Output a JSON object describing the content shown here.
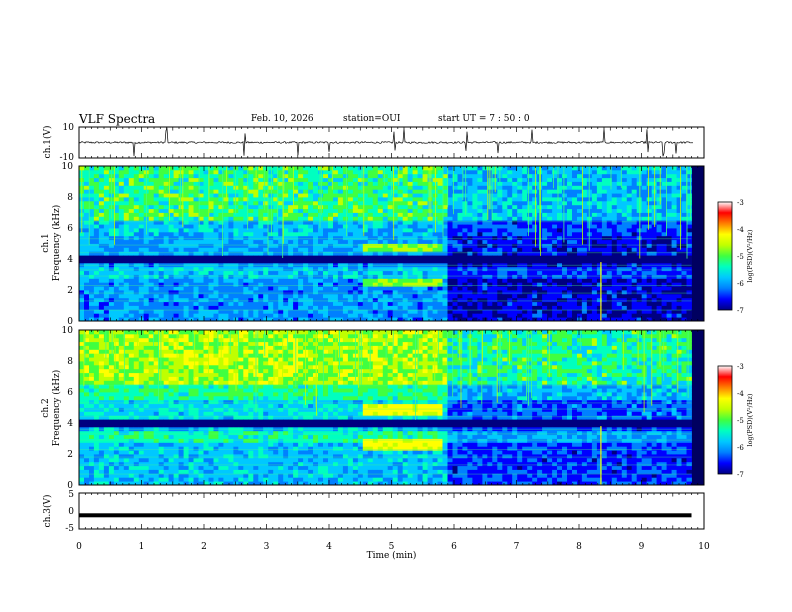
{
  "header": {
    "title": "VLF Spectra",
    "date": "Feb. 10, 2026",
    "station": "station=OUI",
    "start": "start UT =  7 : 50 : 0"
  },
  "colors": {
    "colormap": [
      "#000080",
      "#0000ff",
      "#0080ff",
      "#00c8ff",
      "#00ffc0",
      "#40ff40",
      "#c0ff00",
      "#ffff00",
      "#ff8000",
      "#ff0000",
      "#ffffff"
    ],
    "trace": "#000000"
  },
  "chart_data": [
    {
      "type": "line",
      "id": "ch1_waveform",
      "ylabel": "ch.1(V)",
      "ylim": [
        -10,
        10
      ],
      "ytick_labels": [
        "10",
        "-10"
      ],
      "baseline": 0,
      "noise_amplitude": 0.6,
      "spike_times_min": [
        0.88,
        1.4,
        2.65,
        3.5,
        4.0,
        5.05,
        5.2,
        6.2,
        6.7,
        7.25,
        8.4,
        9.1,
        9.35,
        9.55
      ],
      "xlim": [
        0,
        9.8
      ]
    },
    {
      "type": "heatmap",
      "id": "ch1_spectrogram",
      "ylabel": "ch.1\nFrequency (kHz)",
      "ylabel_lines": [
        "ch.1",
        "Frequency (kHz)"
      ],
      "ylim": [
        0,
        10
      ],
      "ytick_labels": [
        "10",
        "8",
        "6",
        "4",
        "2",
        "0"
      ],
      "xlim": [
        0,
        9.8
      ],
      "colorbar": {
        "label": "log(PSD)(V²/Hz)",
        "range": [
          -7,
          -3
        ],
        "tick_labels": [
          "-3",
          "-4",
          "-5",
          "-6",
          "-7"
        ]
      },
      "features": {
        "broadband_noise_above_khz": 6.5,
        "band_enhancements": [
          {
            "t_start": 4.55,
            "t_end": 5.85,
            "f_low": 4.6,
            "f_high": 5.1,
            "level": -4.8
          },
          {
            "t_start": 4.55,
            "t_end": 5.85,
            "f_low": 2.2,
            "f_high": 2.7,
            "level": -4.8
          }
        ],
        "quiet_bands_khz": [
          [
            3.7,
            4.2
          ],
          [
            0.9,
            1.2
          ]
        ],
        "late_event_start_min": 8.35
      }
    },
    {
      "type": "heatmap",
      "id": "ch2_spectrogram",
      "ylabel": "ch.2\nFrequency (kHz)",
      "ylabel_lines": [
        "ch.2",
        "Frequency (kHz)"
      ],
      "ylim": [
        0,
        10
      ],
      "ytick_labels": [
        "10",
        "8",
        "6",
        "4",
        "2",
        "0"
      ],
      "xlim": [
        0,
        9.8
      ],
      "colorbar": {
        "label": "log(PSD)(V²/Hz)",
        "range": [
          -7,
          -3
        ],
        "tick_labels": [
          "-3",
          "-4",
          "-5",
          "-6",
          "-7"
        ]
      },
      "features": {
        "broadband_noise_above_khz": 6.5,
        "band_enhancements": [
          {
            "t_start": 4.55,
            "t_end": 5.85,
            "f_low": 4.6,
            "f_high": 5.3,
            "level": -4.2
          },
          {
            "t_start": 4.55,
            "t_end": 5.85,
            "f_low": 2.3,
            "f_high": 2.9,
            "level": -4.2
          }
        ],
        "late_event_start_min": 8.35
      }
    },
    {
      "type": "line",
      "id": "ch3_waveform",
      "ylabel": "ch.3(V)",
      "ylim": [
        -5,
        5
      ],
      "ytick_labels": [
        "5",
        "0",
        "-5"
      ],
      "constant_value": -1.2,
      "xlim": [
        0,
        9.8
      ]
    }
  ],
  "xaxis": {
    "label": "Time (min)",
    "range": [
      0,
      10
    ],
    "tick_labels": [
      "0",
      "1",
      "2",
      "3",
      "4",
      "5",
      "6",
      "7",
      "8",
      "9",
      "10"
    ]
  }
}
